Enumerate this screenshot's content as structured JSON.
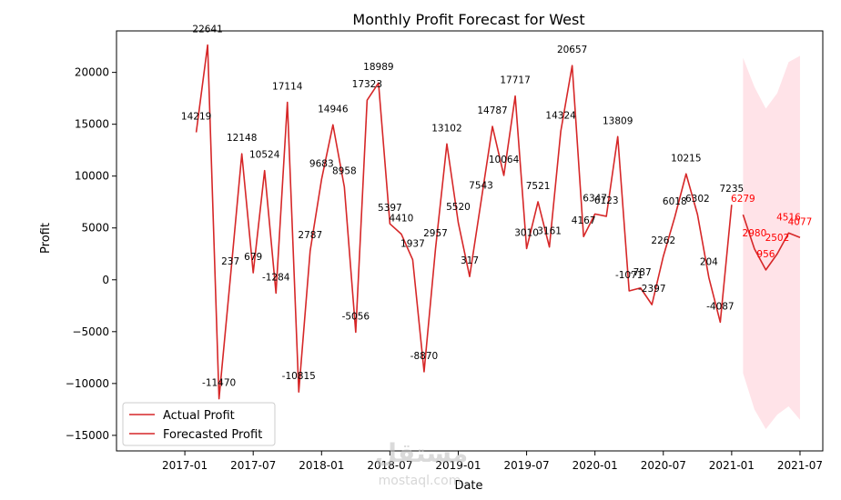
{
  "chart_data": {
    "type": "line",
    "title": "Monthly Profit Forecast for West",
    "xlabel": "Date",
    "ylabel": "Profit",
    "ylim": [
      -16500,
      24000
    ],
    "xlim_months": [
      -6,
      56
    ],
    "x_ticks": [
      {
        "m": 0,
        "label": "2017-01"
      },
      {
        "m": 6,
        "label": "2017-07"
      },
      {
        "m": 12,
        "label": "2018-01"
      },
      {
        "m": 18,
        "label": "2018-07"
      },
      {
        "m": 24,
        "label": "2019-01"
      },
      {
        "m": 30,
        "label": "2019-07"
      },
      {
        "m": 36,
        "label": "2020-01"
      },
      {
        "m": 42,
        "label": "2020-07"
      },
      {
        "m": 48,
        "label": "2021-01"
      },
      {
        "m": 54,
        "label": "2021-07"
      }
    ],
    "y_ticks": [
      {
        "v": -15000,
        "label": "−15000"
      },
      {
        "v": -10000,
        "label": "−10000"
      },
      {
        "v": -5000,
        "label": "−5000"
      },
      {
        "v": 0,
        "label": "0"
      },
      {
        "v": 5000,
        "label": "5000"
      },
      {
        "v": 10000,
        "label": "10000"
      },
      {
        "v": 15000,
        "label": "15000"
      },
      {
        "v": 20000,
        "label": "20000"
      }
    ],
    "series": [
      {
        "name": "Actual Profit",
        "color": "#d62728",
        "months": [
          1,
          2,
          3,
          4,
          5,
          6,
          7,
          8,
          9,
          10,
          11,
          12,
          13,
          14,
          15,
          16,
          17,
          18,
          19,
          20,
          21,
          22,
          23,
          24,
          25,
          26,
          27,
          28,
          29,
          30,
          31,
          32,
          33,
          34,
          35,
          36,
          37,
          38,
          39,
          40,
          41,
          42,
          43,
          44,
          45,
          46,
          47,
          48
        ],
        "values": [
          14219,
          22641,
          -11470,
          237,
          12148,
          679,
          10524,
          -1284,
          17114,
          -10815,
          2787,
          9683,
          14946,
          8958,
          -5056,
          17323,
          18989,
          5397,
          4410,
          1937,
          -8870,
          2957,
          13102,
          5520,
          317,
          7543,
          14787,
          10064,
          17717,
          3010,
          7521,
          3161,
          14324,
          20657,
          4167,
          6347,
          6123,
          13809,
          -1071,
          -787,
          -2397,
          2262,
          6018,
          10215,
          6302,
          204,
          -4087,
          7235
        ]
      },
      {
        "name": "Forecasted Profit",
        "color": "#d62728",
        "months": [
          49,
          50,
          51,
          52,
          53,
          54
        ],
        "values": [
          6279,
          2980,
          956,
          2502,
          4516,
          4077
        ],
        "upper": [
          21400,
          18600,
          16500,
          18000,
          21000,
          21600
        ],
        "lower": [
          -9000,
          -12500,
          -14400,
          -13000,
          -12200,
          -13500
        ],
        "band_color": "#ffc0cb"
      }
    ],
    "legend": {
      "position": "lower-left",
      "entries": [
        "Actual Profit",
        "Forecasted Profit"
      ]
    }
  },
  "watermark": {
    "main": "مستقل",
    "sub": "mostaql.com"
  }
}
